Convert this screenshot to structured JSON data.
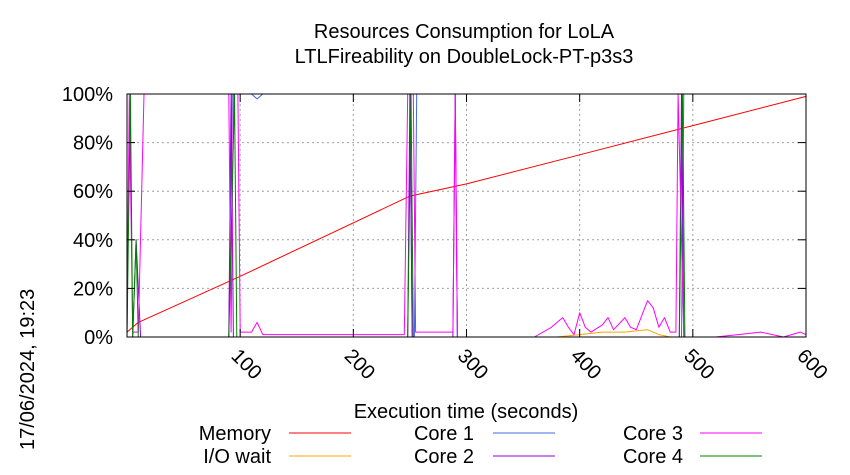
{
  "chart_data": {
    "type": "line",
    "title": "Resources Consumption for LoLA",
    "subtitle": "LTLFireability on DoubleLock-PT-p3s3",
    "xlabel": "Execution time (seconds)",
    "ylabel": "",
    "xlim": [
      0,
      600
    ],
    "ylim": [
      0,
      100
    ],
    "x_ticks": [
      "100",
      "200",
      "300",
      "400",
      "500",
      "600"
    ],
    "x_tick_values": [
      100,
      200,
      300,
      400,
      500,
      600
    ],
    "y_ticks": [
      "0%",
      "20%",
      "40%",
      "60%",
      "80%",
      "100%"
    ],
    "y_tick_values": [
      0,
      20,
      40,
      60,
      80,
      100
    ],
    "grid": true,
    "legend_position": "bottom",
    "timestamp": "17/06/2024, 19:23",
    "series": [
      {
        "name": "Memory",
        "color": "#ff0000",
        "points": [
          [
            0,
            2
          ],
          [
            10,
            6
          ],
          [
            100,
            25
          ],
          [
            250,
            58
          ],
          [
            300,
            63
          ],
          [
            400,
            75
          ],
          [
            500,
            87
          ],
          [
            600,
            99
          ]
        ]
      },
      {
        "name": "I/O wait",
        "color": "#ffa500",
        "points": [
          [
            0,
            0
          ],
          [
            100,
            0
          ],
          [
            380,
            0
          ],
          [
            400,
            1
          ],
          [
            420,
            2
          ],
          [
            440,
            2
          ],
          [
            460,
            3
          ],
          [
            470,
            1
          ],
          [
            480,
            0
          ],
          [
            600,
            0
          ]
        ]
      },
      {
        "name": "Core 1",
        "color": "#4169e1",
        "points": [
          [
            0,
            0
          ],
          [
            8,
            0
          ],
          [
            12,
            0
          ],
          [
            90,
            0
          ],
          [
            93,
            100
          ],
          [
            110,
            100
          ],
          [
            115,
            98
          ],
          [
            120,
            100
          ],
          [
            250,
            100
          ],
          [
            252,
            0
          ],
          [
            254,
            0
          ],
          [
            256,
            100
          ],
          [
            290,
            100
          ],
          [
            292,
            0
          ],
          [
            490,
            0
          ],
          [
            492,
            100
          ],
          [
            600,
            100
          ]
        ]
      },
      {
        "name": "Core 2",
        "color": "#9400d3",
        "points": [
          [
            0,
            0
          ],
          [
            5,
            0
          ],
          [
            8,
            40
          ],
          [
            12,
            0
          ],
          [
            90,
            0
          ],
          [
            92,
            100
          ],
          [
            94,
            0
          ],
          [
            248,
            0
          ],
          [
            250,
            100
          ],
          [
            252,
            0
          ],
          [
            288,
            0
          ],
          [
            290,
            100
          ],
          [
            292,
            0
          ],
          [
            488,
            0
          ],
          [
            490,
            100
          ],
          [
            492,
            0
          ],
          [
            600,
            0
          ]
        ]
      },
      {
        "name": "Core 3",
        "color": "#ff00ff",
        "points": [
          [
            0,
            2
          ],
          [
            2,
            100
          ],
          [
            5,
            2
          ],
          [
            10,
            2
          ],
          [
            15,
            100
          ],
          [
            90,
            100
          ],
          [
            92,
            2
          ],
          [
            94,
            100
          ],
          [
            98,
            100
          ],
          [
            100,
            2
          ],
          [
            110,
            2
          ],
          [
            115,
            6
          ],
          [
            120,
            1
          ],
          [
            200,
            1
          ],
          [
            245,
            1
          ],
          [
            248,
            100
          ],
          [
            253,
            100
          ],
          [
            255,
            2
          ],
          [
            288,
            2
          ],
          [
            290,
            100
          ],
          [
            292,
            0
          ],
          [
            360,
            0
          ],
          [
            375,
            4
          ],
          [
            380,
            6
          ],
          [
            385,
            8
          ],
          [
            390,
            4
          ],
          [
            395,
            1
          ],
          [
            400,
            10
          ],
          [
            405,
            4
          ],
          [
            410,
            2
          ],
          [
            420,
            5
          ],
          [
            425,
            8
          ],
          [
            430,
            3
          ],
          [
            440,
            8
          ],
          [
            445,
            4
          ],
          [
            450,
            3
          ],
          [
            460,
            15
          ],
          [
            465,
            12
          ],
          [
            470,
            4
          ],
          [
            475,
            8
          ],
          [
            480,
            2
          ],
          [
            485,
            2
          ],
          [
            487,
            100
          ],
          [
            492,
            0
          ],
          [
            520,
            0
          ],
          [
            540,
            1
          ],
          [
            560,
            2
          ],
          [
            580,
            0
          ],
          [
            595,
            2
          ],
          [
            600,
            1
          ]
        ]
      },
      {
        "name": "Core 4",
        "color": "#008000",
        "points": [
          [
            0,
            0
          ],
          [
            3,
            100
          ],
          [
            5,
            0
          ],
          [
            8,
            40
          ],
          [
            10,
            0
          ],
          [
            90,
            0
          ],
          [
            95,
            100
          ],
          [
            97,
            0
          ],
          [
            248,
            0
          ],
          [
            251,
            100
          ],
          [
            253,
            0
          ],
          [
            488,
            0
          ],
          [
            491,
            100
          ],
          [
            493,
            0
          ],
          [
            600,
            0
          ]
        ]
      }
    ]
  }
}
